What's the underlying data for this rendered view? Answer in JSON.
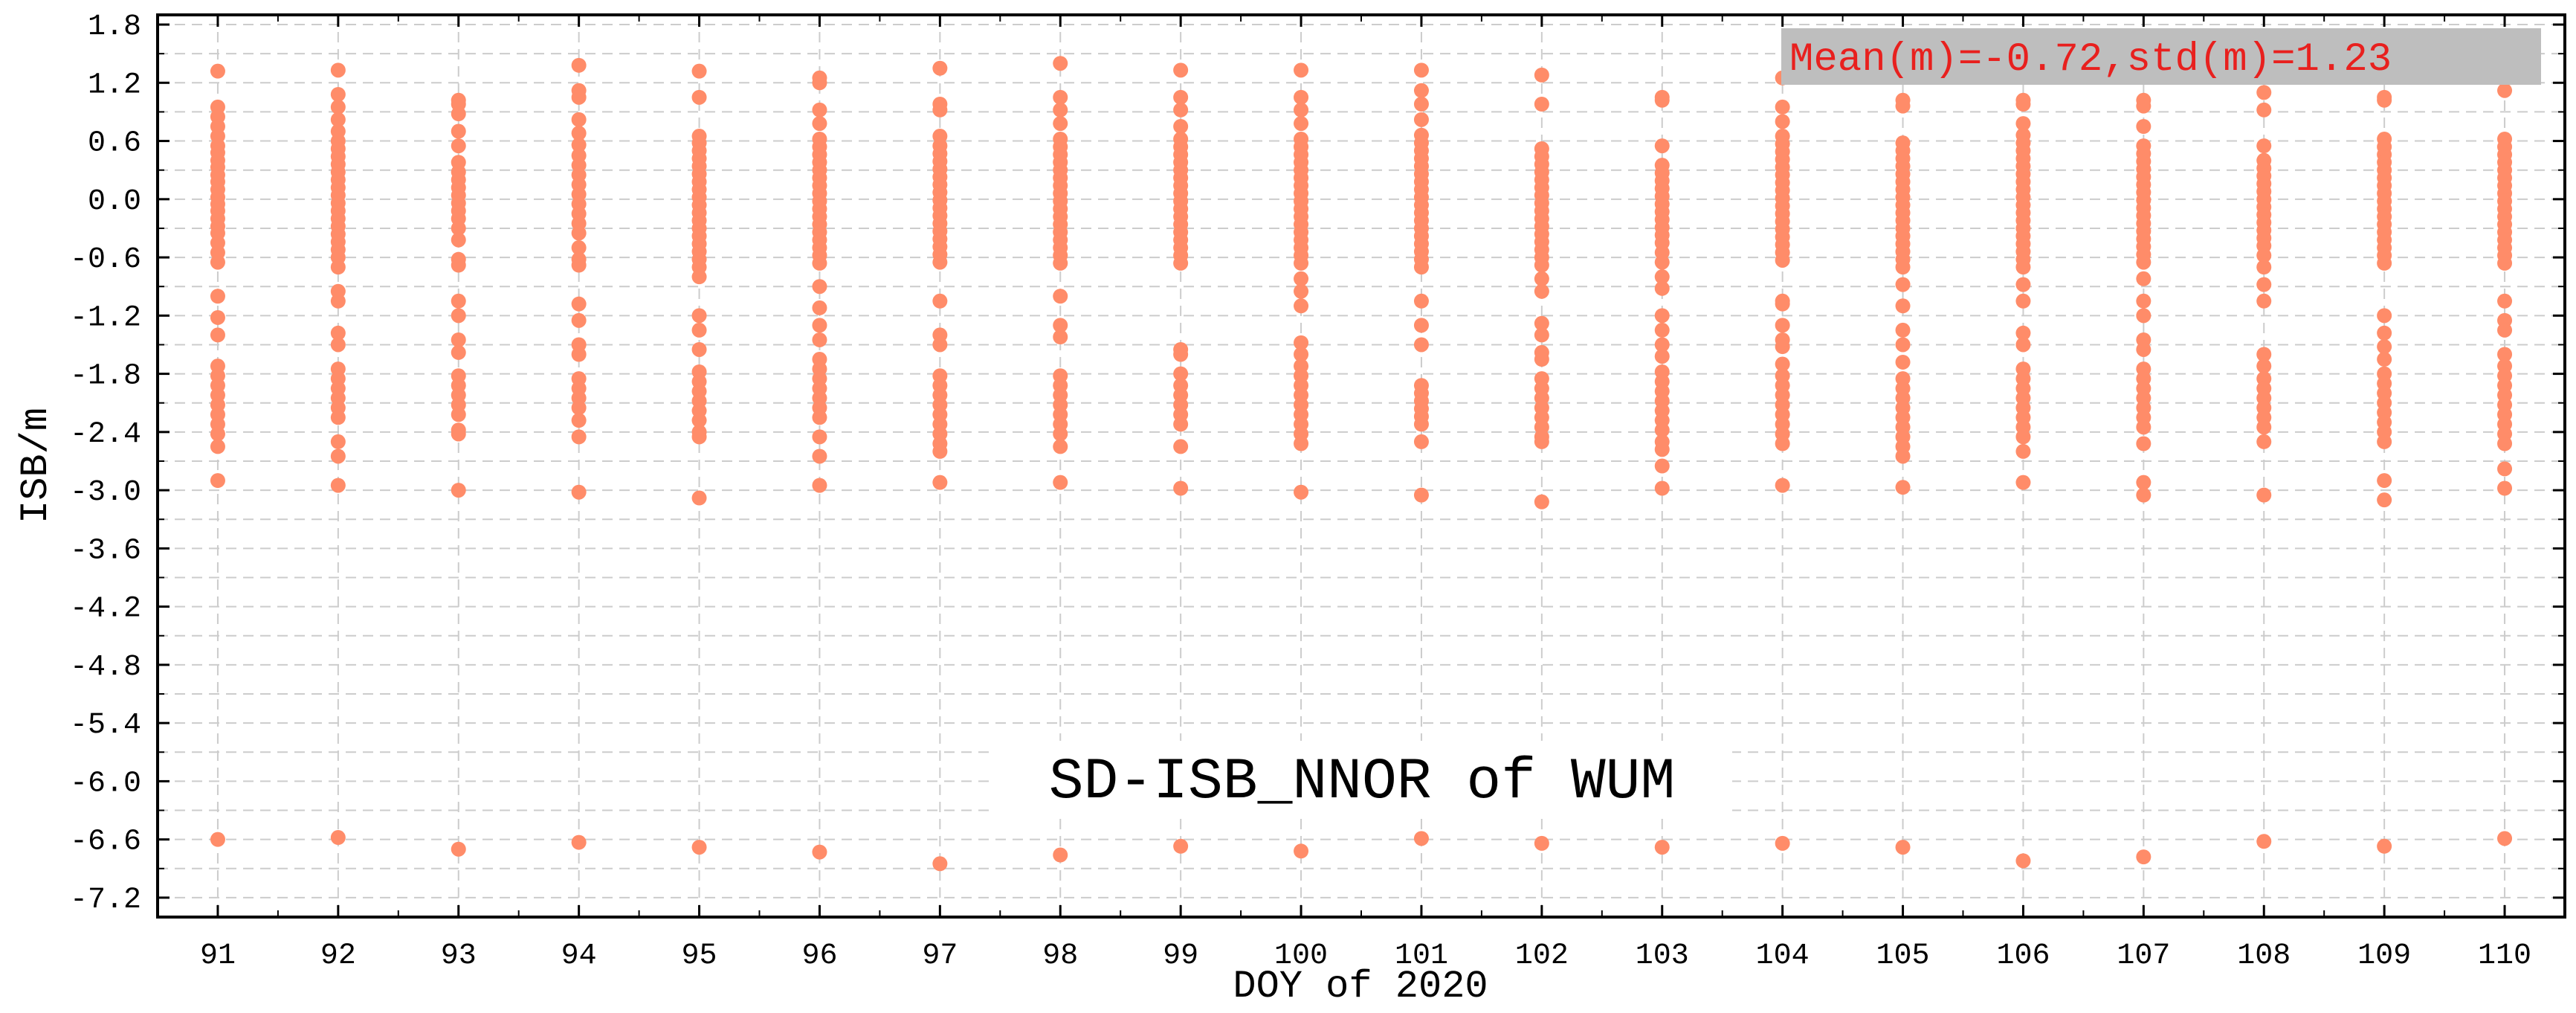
{
  "chart_data": {
    "type": "scatter",
    "title": "SD-ISB_NNOR of WUM",
    "stats_label": "Mean(m)=-0.72,std(m)=1.23",
    "xlabel": "DOY of 2020",
    "ylabel": "ISB/m",
    "xlim": [
      90.5,
      110.5
    ],
    "ylim": [
      -7.4,
      1.9
    ],
    "xticks": [
      91,
      92,
      93,
      94,
      95,
      96,
      97,
      98,
      99,
      100,
      101,
      102,
      103,
      104,
      105,
      106,
      107,
      108,
      109,
      110
    ],
    "xtick_labels": [
      "91",
      "92",
      "93",
      "94",
      "95",
      "96",
      "97",
      "98",
      "99",
      "100",
      "101",
      "102",
      "103",
      "104",
      "105",
      "106",
      "107",
      "108",
      "109",
      "110"
    ],
    "yticks": [
      1.8,
      1.2,
      0.6,
      0.0,
      -0.6,
      -1.2,
      -1.8,
      -2.4,
      -3.0,
      -3.6,
      -4.2,
      -4.8,
      -5.4,
      -6.0,
      -6.6,
      -7.2
    ],
    "ytick_labels": [
      "1.8",
      "1.2",
      "0.6",
      "0.0",
      "-0.6",
      "-1.2",
      "-1.8",
      "-2.4",
      "-3.0",
      "-3.6",
      "-4.2",
      "-4.8",
      "-5.4",
      "-6.0",
      "-6.6",
      "-7.2"
    ],
    "grid": true,
    "colors": {
      "marker": "#FF8C69",
      "stats_text": "#E8201E",
      "stats_box": "#BEBEBE",
      "grid": "#CCCCCC"
    },
    "series": [
      {
        "x": 91,
        "y": [
          1.32,
          0.95,
          0.85,
          0.75,
          0.65,
          0.55,
          0.48,
          0.4,
          0.33,
          0.25,
          0.18,
          0.1,
          0.02,
          -0.05,
          -0.12,
          -0.2,
          -0.28,
          -0.35,
          -0.45,
          -0.55,
          -0.65,
          -1.0,
          -1.22,
          -1.4,
          -1.72,
          -1.82,
          -1.92,
          -2.02,
          -2.12,
          -2.22,
          -2.32,
          -2.42,
          -2.55,
          -2.9,
          -6.6
        ]
      },
      {
        "x": 92,
        "y": [
          1.33,
          1.08,
          0.95,
          0.82,
          0.7,
          0.6,
          0.52,
          0.44,
          0.36,
          0.28,
          0.2,
          0.12,
          0.04,
          -0.04,
          -0.12,
          -0.2,
          -0.28,
          -0.36,
          -0.44,
          -0.52,
          -0.6,
          -0.7,
          -0.95,
          -1.05,
          -1.38,
          -1.5,
          -1.75,
          -1.85,
          -1.95,
          -2.05,
          -2.15,
          -2.25,
          -2.5,
          -2.65,
          -2.95,
          -6.58
        ]
      },
      {
        "x": 93,
        "y": [
          1.02,
          0.98,
          0.88,
          0.7,
          0.55,
          0.38,
          0.28,
          0.2,
          0.12,
          0.04,
          -0.04,
          -0.12,
          -0.2,
          -0.3,
          -0.42,
          -0.62,
          -0.68,
          -1.05,
          -1.2,
          -1.45,
          -1.58,
          -1.82,
          -1.92,
          -2.02,
          -2.12,
          -2.22,
          -2.38,
          -2.42,
          -3.0,
          -6.7
        ]
      },
      {
        "x": 94,
        "y": [
          1.38,
          1.12,
          1.05,
          0.82,
          0.68,
          0.56,
          0.45,
          0.35,
          0.25,
          0.15,
          0.05,
          -0.05,
          -0.15,
          -0.25,
          -0.35,
          -0.5,
          -0.62,
          -0.68,
          -1.08,
          -1.25,
          -1.5,
          -1.6,
          -1.85,
          -1.95,
          -2.05,
          -2.15,
          -2.28,
          -2.45,
          -3.02,
          -6.63
        ]
      },
      {
        "x": 95,
        "y": [
          1.32,
          1.05,
          0.65,
          0.58,
          0.5,
          0.42,
          0.34,
          0.26,
          0.18,
          0.1,
          0.02,
          -0.06,
          -0.14,
          -0.22,
          -0.3,
          -0.38,
          -0.46,
          -0.54,
          -0.62,
          -0.7,
          -0.8,
          -1.2,
          -1.35,
          -1.55,
          -1.78,
          -1.88,
          -1.98,
          -2.08,
          -2.18,
          -2.28,
          -2.4,
          -2.45,
          -3.08,
          -6.68
        ]
      },
      {
        "x": 96,
        "y": [
          1.25,
          1.2,
          0.92,
          0.78,
          0.62,
          0.54,
          0.46,
          0.38,
          0.3,
          0.22,
          0.14,
          0.06,
          -0.02,
          -0.1,
          -0.18,
          -0.26,
          -0.34,
          -0.42,
          -0.5,
          -0.58,
          -0.66,
          -0.9,
          -1.12,
          -1.3,
          -1.45,
          -1.65,
          -1.75,
          -1.85,
          -1.95,
          -2.05,
          -2.15,
          -2.25,
          -2.45,
          -2.65,
          -2.95,
          -6.73
        ]
      },
      {
        "x": 97,
        "y": [
          1.35,
          0.98,
          0.92,
          0.65,
          0.55,
          0.47,
          0.39,
          0.31,
          0.23,
          0.15,
          0.07,
          -0.01,
          -0.09,
          -0.17,
          -0.25,
          -0.33,
          -0.41,
          -0.49,
          -0.57,
          -0.65,
          -1.05,
          -1.4,
          -1.5,
          -1.82,
          -1.92,
          -2.02,
          -2.12,
          -2.22,
          -2.32,
          -2.42,
          -2.52,
          -2.6,
          -2.92,
          -6.85
        ]
      },
      {
        "x": 98,
        "y": [
          1.4,
          1.05,
          0.92,
          0.78,
          0.62,
          0.54,
          0.46,
          0.38,
          0.3,
          0.22,
          0.14,
          0.06,
          -0.02,
          -0.1,
          -0.18,
          -0.26,
          -0.34,
          -0.42,
          -0.5,
          -0.58,
          -0.66,
          -1.0,
          -1.3,
          -1.42,
          -1.82,
          -1.92,
          -2.02,
          -2.12,
          -2.22,
          -2.32,
          -2.42,
          -2.55,
          -2.92,
          -6.76
        ]
      },
      {
        "x": 99,
        "y": [
          1.33,
          1.05,
          0.92,
          0.75,
          0.62,
          0.54,
          0.46,
          0.38,
          0.3,
          0.22,
          0.14,
          0.06,
          -0.02,
          -0.1,
          -0.18,
          -0.26,
          -0.34,
          -0.42,
          -0.5,
          -0.58,
          -0.66,
          -1.55,
          -1.6,
          -1.8,
          -1.92,
          -2.02,
          -2.12,
          -2.22,
          -2.32,
          -2.55,
          -2.98,
          -6.67
        ]
      },
      {
        "x": 100,
        "y": [
          1.33,
          1.05,
          0.92,
          0.78,
          0.62,
          0.54,
          0.46,
          0.38,
          0.3,
          0.22,
          0.14,
          0.06,
          -0.02,
          -0.1,
          -0.18,
          -0.26,
          -0.34,
          -0.42,
          -0.5,
          -0.58,
          -0.66,
          -0.82,
          -0.95,
          -1.1,
          -1.48,
          -1.6,
          -1.72,
          -1.82,
          -1.92,
          -2.02,
          -2.12,
          -2.22,
          -2.32,
          -2.42,
          -2.52,
          -3.02,
          -6.72
        ]
      },
      {
        "x": 101,
        "y": [
          1.33,
          1.12,
          0.98,
          0.82,
          0.66,
          0.58,
          0.5,
          0.42,
          0.34,
          0.26,
          0.18,
          0.1,
          0.02,
          -0.06,
          -0.14,
          -0.22,
          -0.3,
          -0.38,
          -0.46,
          -0.54,
          -0.62,
          -0.7,
          -1.05,
          -1.3,
          -1.5,
          -1.92,
          -2.0,
          -2.08,
          -2.16,
          -2.24,
          -2.32,
          -2.5,
          -3.05,
          -6.59
        ]
      },
      {
        "x": 102,
        "y": [
          1.28,
          0.98,
          0.52,
          0.44,
          0.36,
          0.28,
          0.2,
          0.12,
          0.04,
          -0.04,
          -0.12,
          -0.2,
          -0.28,
          -0.36,
          -0.44,
          -0.52,
          -0.6,
          -0.68,
          -0.82,
          -0.95,
          -1.28,
          -1.4,
          -1.58,
          -1.65,
          -1.85,
          -1.95,
          -2.05,
          -2.15,
          -2.25,
          -2.35,
          -2.45,
          -2.5,
          -3.12,
          -6.64
        ]
      },
      {
        "x": 103,
        "y": [
          1.05,
          1.02,
          0.55,
          0.35,
          0.27,
          0.19,
          0.11,
          0.03,
          -0.05,
          -0.13,
          -0.21,
          -0.29,
          -0.37,
          -0.45,
          -0.55,
          -0.65,
          -0.8,
          -0.92,
          -1.2,
          -1.35,
          -1.5,
          -1.62,
          -1.78,
          -1.88,
          -1.98,
          -2.08,
          -2.18,
          -2.28,
          -2.38,
          -2.5,
          -2.58,
          -2.75,
          -2.98,
          -6.68
        ]
      },
      {
        "x": 104,
        "y": [
          1.25,
          0.95,
          0.8,
          0.65,
          0.57,
          0.49,
          0.41,
          0.33,
          0.25,
          0.17,
          0.09,
          0.01,
          -0.07,
          -0.15,
          -0.23,
          -0.31,
          -0.39,
          -0.47,
          -0.55,
          -0.63,
          -1.05,
          -1.08,
          -1.3,
          -1.45,
          -1.52,
          -1.7,
          -1.82,
          -1.92,
          -2.02,
          -2.12,
          -2.22,
          -2.32,
          -2.42,
          -2.52,
          -2.95,
          -6.64
        ]
      },
      {
        "x": 105,
        "y": [
          1.02,
          0.96,
          0.58,
          0.5,
          0.42,
          0.34,
          0.26,
          0.18,
          0.1,
          0.02,
          -0.06,
          -0.14,
          -0.22,
          -0.3,
          -0.38,
          -0.46,
          -0.54,
          -0.62,
          -0.7,
          -0.88,
          -1.1,
          -1.35,
          -1.5,
          -1.68,
          -1.85,
          -1.95,
          -2.05,
          -2.15,
          -2.25,
          -2.35,
          -2.45,
          -2.55,
          -2.65,
          -2.97,
          -6.68
        ]
      },
      {
        "x": 106,
        "y": [
          1.02,
          0.98,
          0.78,
          0.66,
          0.58,
          0.5,
          0.42,
          0.34,
          0.26,
          0.18,
          0.1,
          0.02,
          -0.06,
          -0.14,
          -0.22,
          -0.3,
          -0.38,
          -0.46,
          -0.54,
          -0.62,
          -0.7,
          -0.88,
          -1.05,
          -1.38,
          -1.5,
          -1.75,
          -1.85,
          -1.95,
          -2.05,
          -2.15,
          -2.25,
          -2.35,
          -2.45,
          -2.6,
          -2.92,
          -6.82
        ]
      },
      {
        "x": 107,
        "y": [
          1.02,
          0.96,
          0.75,
          0.55,
          0.47,
          0.39,
          0.31,
          0.23,
          0.15,
          0.07,
          -0.01,
          -0.09,
          -0.17,
          -0.25,
          -0.33,
          -0.41,
          -0.49,
          -0.57,
          -0.65,
          -0.82,
          -1.05,
          -1.2,
          -1.45,
          -1.55,
          -1.75,
          -1.85,
          -1.95,
          -2.05,
          -2.15,
          -2.25,
          -2.35,
          -2.52,
          -2.92,
          -3.05,
          -6.78
        ]
      },
      {
        "x": 108,
        "y": [
          1.1,
          0.92,
          0.55,
          0.4,
          0.32,
          0.24,
          0.16,
          0.08,
          0.0,
          -0.08,
          -0.16,
          -0.24,
          -0.32,
          -0.4,
          -0.48,
          -0.58,
          -0.7,
          -0.88,
          -1.05,
          -1.6,
          -1.72,
          -1.85,
          -1.95,
          -2.05,
          -2.15,
          -2.25,
          -2.35,
          -2.5,
          -3.05,
          -6.62
        ]
      },
      {
        "x": 109,
        "y": [
          1.05,
          1.02,
          0.62,
          0.54,
          0.46,
          0.38,
          0.3,
          0.22,
          0.14,
          0.06,
          -0.02,
          -0.1,
          -0.18,
          -0.26,
          -0.34,
          -0.42,
          -0.5,
          -0.58,
          -0.66,
          -1.2,
          -1.38,
          -1.52,
          -1.65,
          -1.8,
          -1.9,
          -2.0,
          -2.1,
          -2.2,
          -2.3,
          -2.4,
          -2.5,
          -2.9,
          -3.1,
          -6.67
        ]
      },
      {
        "x": 110,
        "y": [
          1.12,
          0.62,
          0.54,
          0.46,
          0.38,
          0.3,
          0.22,
          0.14,
          0.06,
          -0.02,
          -0.1,
          -0.18,
          -0.26,
          -0.34,
          -0.42,
          -0.5,
          -0.58,
          -0.66,
          -1.05,
          -1.25,
          -1.35,
          -1.6,
          -1.72,
          -1.82,
          -1.92,
          -2.02,
          -2.12,
          -2.22,
          -2.32,
          -2.42,
          -2.52,
          -2.78,
          -2.98,
          -6.59
        ]
      }
    ]
  }
}
